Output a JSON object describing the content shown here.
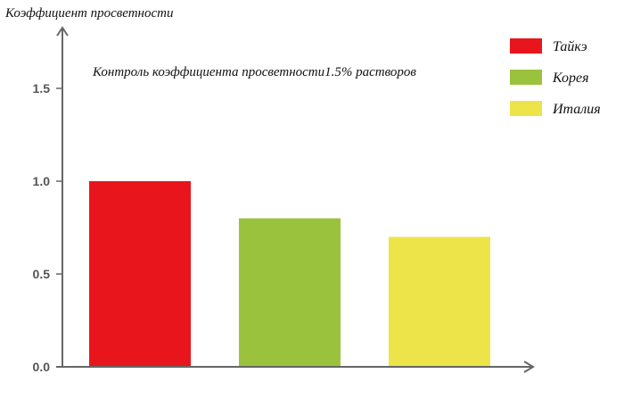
{
  "chart_data": {
    "type": "bar",
    "ylabel": "Коэффициент просветности",
    "annotation": "Контроль коэффициента просветности1.5% растворов",
    "categories": [
      "Тайкэ",
      "Корея",
      "Италия"
    ],
    "values": [
      1.0,
      0.8,
      0.7
    ],
    "colors": [
      "#e8161c",
      "#9bc23c",
      "#ede44a"
    ],
    "yticks": [
      "0.0",
      "0.5",
      "1.0",
      "1.5"
    ],
    "ylim": [
      0,
      1.8
    ],
    "grid": false,
    "legend": "top-right"
  }
}
